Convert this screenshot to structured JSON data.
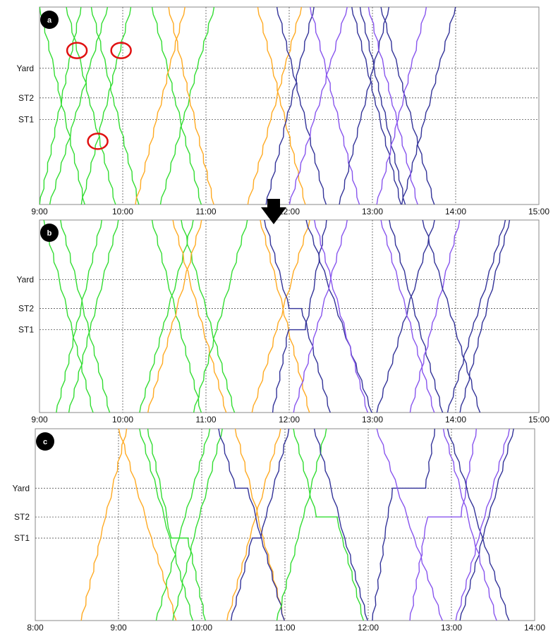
{
  "chart_data": [
    {
      "type": "line",
      "panel_label": "a",
      "xlabel": "",
      "ylabel": "",
      "x_ticks": [
        "9:00",
        "10:00",
        "11:00",
        "12:00",
        "13:00",
        "14:00",
        "15:00"
      ],
      "x_range_hours": [
        9,
        15
      ],
      "y_ticks": [
        "Yard",
        "ST2",
        "ST1"
      ],
      "grid": true,
      "series_colors": {
        "green": "#33dd33",
        "orange": "#ffaa22",
        "purple": "#8855ee",
        "navy": "#333399"
      },
      "trains": [
        {
          "color": "green",
          "start": 9.0,
          "end": 9.5,
          "dir": "up"
        },
        {
          "color": "green",
          "start": 9.12,
          "end": 9.82,
          "dir": "up"
        },
        {
          "color": "green",
          "start": 9.0,
          "end": 9.55,
          "dir": "down"
        },
        {
          "color": "green",
          "start": 9.5,
          "end": 10.1,
          "dir": "up"
        },
        {
          "color": "green",
          "start": 9.32,
          "end": 9.92,
          "dir": "down"
        },
        {
          "color": "green",
          "start": 9.62,
          "end": 10.2,
          "dir": "down"
        },
        {
          "color": "green",
          "start": 10.45,
          "end": 11.1,
          "dir": "up"
        },
        {
          "color": "green",
          "start": 10.35,
          "end": 10.95,
          "dir": "down"
        },
        {
          "color": "orange",
          "start": 10.15,
          "end": 10.75,
          "dir": "up"
        },
        {
          "color": "orange",
          "start": 10.55,
          "end": 11.1,
          "dir": "down"
        },
        {
          "color": "orange",
          "start": 11.5,
          "end": 12.15,
          "dir": "up"
        },
        {
          "color": "orange",
          "start": 11.62,
          "end": 12.2,
          "dir": "down"
        },
        {
          "color": "navy",
          "start": 11.72,
          "end": 12.3,
          "dir": "up"
        },
        {
          "color": "navy",
          "start": 11.85,
          "end": 12.45,
          "dir": "down"
        },
        {
          "color": "purple",
          "start": 12.0,
          "end": 12.7,
          "dir": "up"
        },
        {
          "color": "purple",
          "start": 12.25,
          "end": 12.85,
          "dir": "down"
        },
        {
          "color": "navy",
          "start": 12.6,
          "end": 13.2,
          "dir": "up"
        },
        {
          "color": "navy",
          "start": 12.75,
          "end": 13.35,
          "dir": "down"
        },
        {
          "color": "navy",
          "start": 12.85,
          "end": 13.4,
          "dir": "down"
        },
        {
          "color": "navy",
          "start": 13.35,
          "end": 14.0,
          "dir": "up"
        },
        {
          "color": "navy",
          "start": 13.1,
          "end": 13.75,
          "dir": "down"
        },
        {
          "color": "purple",
          "start": 13.05,
          "end": 13.65,
          "dir": "up"
        },
        {
          "color": "purple",
          "start": 12.95,
          "end": 13.55,
          "dir": "down"
        }
      ],
      "annotations": [
        {
          "type": "conflict-circle",
          "time": 9.45,
          "station": "Yard-above"
        },
        {
          "type": "conflict-circle",
          "time": 9.98,
          "station": "Yard-above"
        },
        {
          "type": "conflict-circle",
          "time": 9.7,
          "station": "below-ST1"
        }
      ]
    },
    {
      "type": "line",
      "panel_label": "b",
      "xlabel": "",
      "ylabel": "",
      "x_ticks": [
        "9:00",
        "10:00",
        "11:00",
        "12:00",
        "13:00",
        "14:00",
        "15:00"
      ],
      "x_range_hours": [
        9,
        15
      ],
      "y_ticks": [
        "Yard",
        "ST2",
        "ST1"
      ],
      "grid": true,
      "series_colors": {
        "green": "#33dd33",
        "orange": "#ffaa22",
        "purple": "#8855ee",
        "navy": "#333399"
      },
      "trains": [
        {
          "color": "green",
          "start": 9.2,
          "end": 9.75,
          "dir": "up"
        },
        {
          "color": "green",
          "start": 9.35,
          "end": 9.95,
          "dir": "up"
        },
        {
          "color": "green",
          "start": 9.05,
          "end": 9.65,
          "dir": "down"
        },
        {
          "color": "green",
          "start": 9.25,
          "end": 9.85,
          "dir": "down"
        },
        {
          "color": "green",
          "start": 10.2,
          "end": 10.85,
          "dir": "up"
        },
        {
          "color": "green",
          "start": 10.35,
          "end": 10.95,
          "dir": "down"
        },
        {
          "color": "green",
          "start": 10.7,
          "end": 11.35,
          "dir": "down"
        },
        {
          "color": "orange",
          "start": 10.3,
          "end": 10.95,
          "dir": "up"
        },
        {
          "color": "orange",
          "start": 10.6,
          "end": 11.25,
          "dir": "down"
        },
        {
          "color": "green",
          "start": 10.85,
          "end": 11.5,
          "dir": "up"
        },
        {
          "color": "orange",
          "start": 11.55,
          "end": 12.25,
          "dir": "up"
        },
        {
          "color": "orange",
          "start": 11.65,
          "end": 12.25,
          "dir": "down"
        },
        {
          "color": "navy",
          "start": 11.7,
          "end": 12.5,
          "dir": "down",
          "hold_st2": 0.15
        },
        {
          "color": "navy",
          "start": 11.8,
          "end": 12.45,
          "dir": "up",
          "hold_st1": 0.2
        },
        {
          "color": "navy",
          "start": 12.2,
          "end": 13.0,
          "dir": "down"
        },
        {
          "color": "purple",
          "start": 12.05,
          "end": 12.7,
          "dir": "up"
        },
        {
          "color": "purple",
          "start": 12.3,
          "end": 12.95,
          "dir": "down"
        },
        {
          "color": "navy",
          "start": 13.05,
          "end": 13.75,
          "dir": "up"
        },
        {
          "color": "navy",
          "start": 13.2,
          "end": 13.85,
          "dir": "down"
        },
        {
          "color": "purple",
          "start": 13.1,
          "end": 13.75,
          "dir": "down"
        },
        {
          "color": "purple",
          "start": 13.45,
          "end": 14.05,
          "dir": "up"
        },
        {
          "color": "navy",
          "start": 13.6,
          "end": 14.3,
          "dir": "down"
        },
        {
          "color": "navy",
          "start": 13.9,
          "end": 14.6,
          "dir": "up"
        },
        {
          "color": "navy",
          "start": 14.05,
          "end": 14.65,
          "dir": "up"
        }
      ]
    },
    {
      "type": "line",
      "panel_label": "c",
      "xlabel": "",
      "ylabel": "",
      "x_ticks": [
        "8:00",
        "9:00",
        "10:00",
        "11:00",
        "12:00",
        "13:00",
        "14:00"
      ],
      "x_range_hours": [
        8,
        14
      ],
      "y_ticks": [
        "Yard",
        "ST2",
        "ST1"
      ],
      "grid": true,
      "series_colors": {
        "green": "#33dd33",
        "orange": "#ffaa22",
        "purple": "#8855ee",
        "navy": "#333399"
      },
      "trains": [
        {
          "color": "orange",
          "start": 8.55,
          "end": 9.1,
          "dir": "up"
        },
        {
          "color": "orange",
          "start": 9.0,
          "end": 9.7,
          "dir": "down"
        },
        {
          "color": "green",
          "start": 9.25,
          "end": 9.9,
          "dir": "down"
        },
        {
          "color": "green",
          "start": 9.35,
          "end": 10.05,
          "dir": "down",
          "hold_st1": 0.2
        },
        {
          "color": "green",
          "start": 9.45,
          "end": 10.1,
          "dir": "up"
        },
        {
          "color": "green",
          "start": 9.65,
          "end": 10.25,
          "dir": "up"
        },
        {
          "color": "orange",
          "start": 10.3,
          "end": 10.95,
          "dir": "up"
        },
        {
          "color": "orange",
          "start": 10.4,
          "end": 11.0,
          "dir": "down"
        },
        {
          "color": "navy",
          "start": 10.2,
          "end": 11.0,
          "dir": "down",
          "hold_yard": 0.15
        },
        {
          "color": "navy",
          "start": 10.35,
          "end": 11.05,
          "dir": "up",
          "hold_st1": 0.1
        },
        {
          "color": "green",
          "start": 10.9,
          "end": 11.5,
          "dir": "up"
        },
        {
          "color": "green",
          "start": 11.1,
          "end": 11.95,
          "dir": "down",
          "hold_st2": 0.25
        },
        {
          "color": "navy",
          "start": 11.35,
          "end": 12.0,
          "dir": "down"
        },
        {
          "color": "navy",
          "start": 12.05,
          "end": 12.8,
          "dir": "up",
          "hold_yard": 0.4
        },
        {
          "color": "purple",
          "start": 12.1,
          "end": 12.9,
          "dir": "down"
        },
        {
          "color": "purple",
          "start": 12.5,
          "end": 13.3,
          "dir": "up",
          "hold_st2": 0.4
        },
        {
          "color": "navy",
          "start": 12.95,
          "end": 13.7,
          "dir": "down"
        },
        {
          "color": "navy",
          "start": 13.1,
          "end": 13.75,
          "dir": "up"
        },
        {
          "color": "purple",
          "start": 12.9,
          "end": 13.55,
          "dir": "down"
        },
        {
          "color": "purple",
          "start": 13.05,
          "end": 13.7,
          "dir": "up"
        }
      ]
    }
  ],
  "transition_arrow": {
    "symbol": "down-arrow-icon",
    "from": "a",
    "to": "b"
  }
}
